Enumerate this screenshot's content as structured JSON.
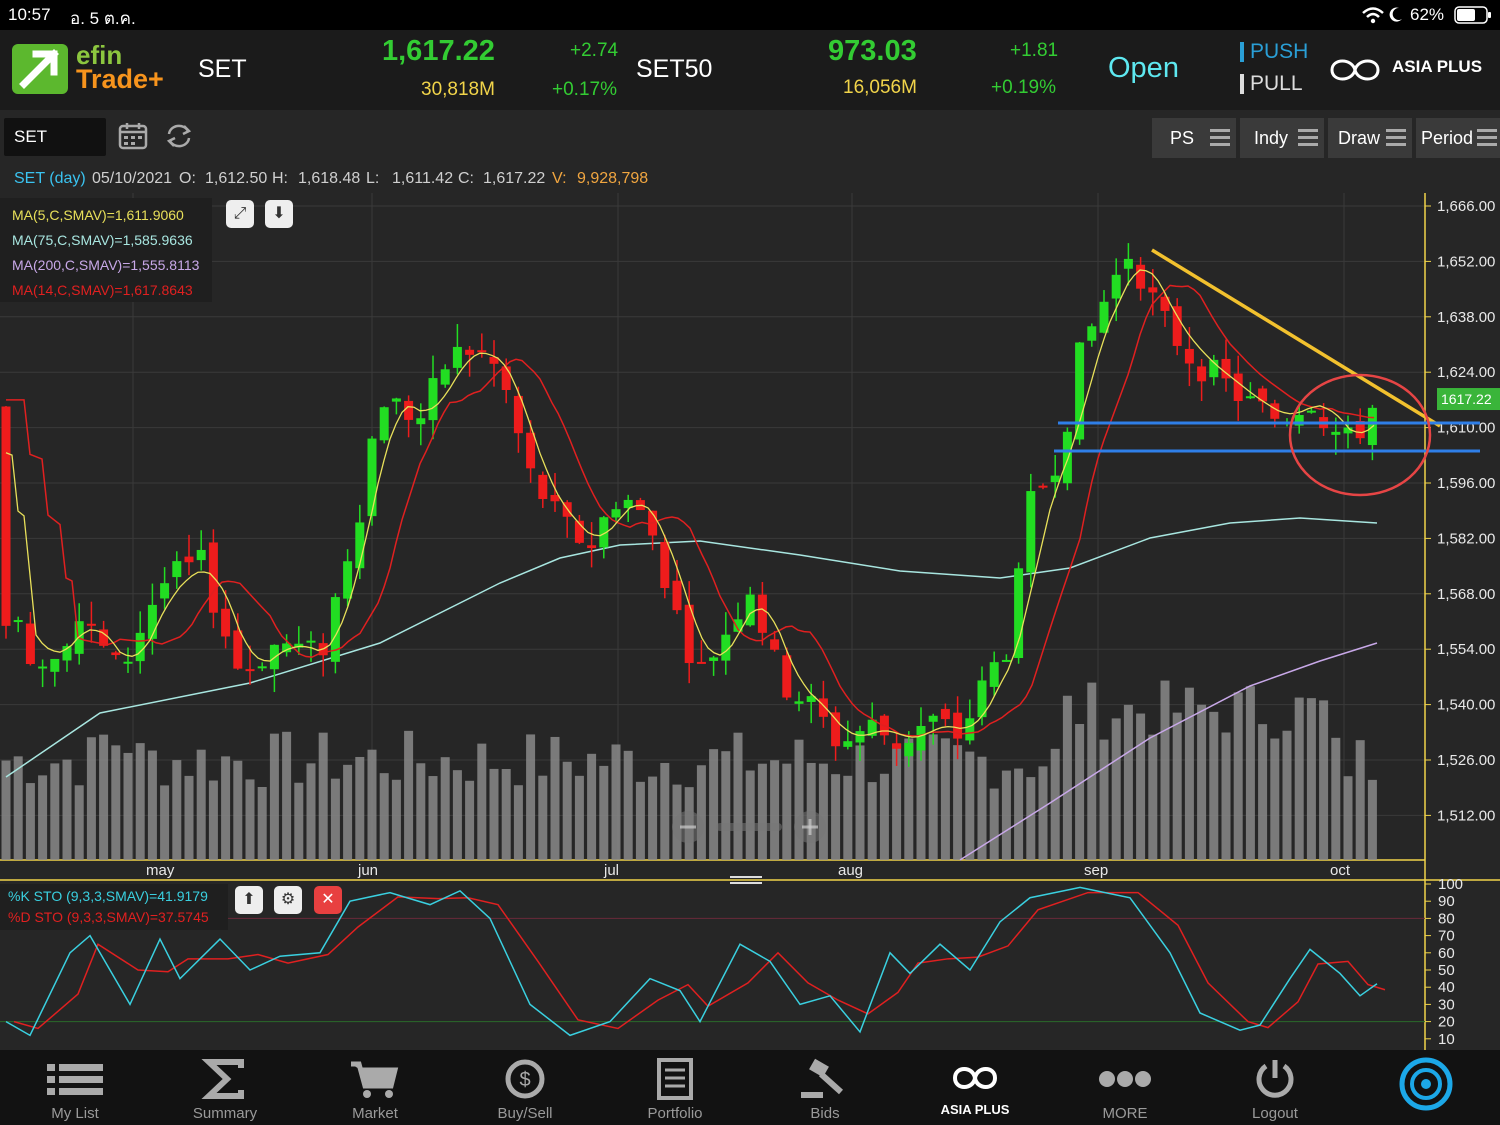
{
  "status_bar": {
    "time": "10:57",
    "date": "อ. 5 ต.ค.",
    "battery": "62%"
  },
  "header": {
    "logo_top": "efin",
    "logo_bottom": "Trade+",
    "index1": {
      "name": "SET",
      "value": "1,617.22",
      "volume": "30,818M",
      "change": "+2.74",
      "change_pct": "+0.17%"
    },
    "index2": {
      "name": "SET50",
      "value": "973.03",
      "volume": "16,056M",
      "change": "+1.81",
      "change_pct": "+0.19%"
    },
    "market_status": "Open",
    "push_label": "PUSH",
    "pull_label": "PULL",
    "broker": "ASIA PLUS"
  },
  "toolbar": {
    "symbol": "SET",
    "buttons": [
      "PS",
      "Indy",
      "Draw",
      "Period"
    ]
  },
  "info_line": {
    "symbol": "SET (day)",
    "date": "05/10/2021",
    "o_label": "O:",
    "o": "1,612.50",
    "h_label": "H:",
    "h": "1,618.48",
    "l_label": "L:",
    "l": "1,611.42",
    "c_label": "C:",
    "c": "1,617.22",
    "v_label": "V:",
    "v": "9,928,798"
  },
  "legend": {
    "ma5": "MA(5,C,SMAV)=1,611.9060",
    "ma75": "MA(75,C,SMAV)=1,585.9636",
    "ma200": "MA(200,C,SMAV)=1,555.8113",
    "ma14": "MA(14,C,SMAV)=1,617.8643",
    "colors": {
      "ma5": "#e8e05a",
      "ma75": "#a8e6e0",
      "ma200": "#c8a8e8",
      "ma14": "#e02020"
    }
  },
  "price_axis": [
    "1,666.00",
    "1,652.00",
    "1,638.00",
    "1,624.00",
    "1,610.00",
    "1,596.00",
    "1,582.00",
    "1,568.00",
    "1,554.00",
    "1,540.00",
    "1,526.00",
    "1,512.00"
  ],
  "last_price_tag": "1617.22",
  "month_labels": [
    "may",
    "jun",
    "jul",
    "aug",
    "sep",
    "oct"
  ],
  "stoch_axis": [
    "100",
    "90",
    "80",
    "70",
    "60",
    "50",
    "40",
    "30",
    "20",
    "10"
  ],
  "stoch_legend": {
    "k": "%K STO (9,3,3,SMAV)=41.9179",
    "d": "%D STO (9,3,3,SMAV)=37.5745",
    "colors": {
      "k": "#3ad0e0",
      "d": "#e02020"
    }
  },
  "bottom_nav": [
    {
      "label": "My List",
      "icon": "list-icon"
    },
    {
      "label": "Summary",
      "icon": "sigma-icon"
    },
    {
      "label": "Market",
      "icon": "cart-icon"
    },
    {
      "label": "Buy/Sell",
      "icon": "buysell-icon"
    },
    {
      "label": "Portfolio",
      "icon": "portfolio-icon"
    },
    {
      "label": "Bids",
      "icon": "gavel-icon"
    },
    {
      "label": "ASIA PLUS",
      "icon": "asiaplus-logo-icon"
    },
    {
      "label": "MORE",
      "icon": "more-icon"
    },
    {
      "label": "Logout",
      "icon": "power-icon"
    }
  ],
  "colors": {
    "up": "#22dd22",
    "down": "#ee1c1c",
    "header_green": "#33cc33",
    "volume_yellow": "#f1d44a",
    "open_cyan": "#5ee8f0"
  }
}
